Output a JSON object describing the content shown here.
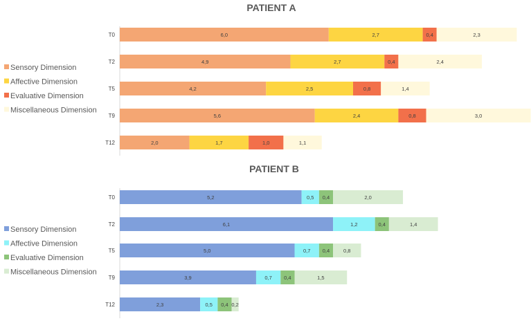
{
  "chart_data": [
    {
      "type": "bar",
      "orientation": "horizontal",
      "stacked": true,
      "title": "PATIENT A",
      "categories": [
        "T0",
        "T2",
        "T5",
        "T9",
        "T12"
      ],
      "series": [
        {
          "name": "Sensory Dimension",
          "color": "#f4a673",
          "values": [
            6.0,
            4.9,
            4.2,
            5.6,
            2.0
          ],
          "labels": [
            "6,0",
            "4,9",
            "4,2",
            "5,6",
            "2,0"
          ]
        },
        {
          "name": "Affective Dimension",
          "color": "#fdd542",
          "values": [
            2.7,
            2.7,
            2.5,
            2.4,
            1.7
          ],
          "labels": [
            "2,7",
            "2,7",
            "2,5",
            "2,4",
            "1,7"
          ]
        },
        {
          "name": "Evaluative Dimension",
          "color": "#f2704a",
          "values": [
            0.4,
            0.4,
            0.8,
            0.8,
            1.0
          ],
          "labels": [
            "0,4",
            "0,4",
            "0,8",
            "0,8",
            "1,0"
          ]
        },
        {
          "name": "Miscellaneous Dimension",
          "color": "#fff8dc",
          "values": [
            2.3,
            2.4,
            1.4,
            3.0,
            1.1
          ],
          "labels": [
            "2,3",
            "2,4",
            "1,4",
            "3,0",
            "1,1"
          ]
        }
      ],
      "legend_position": "left",
      "grid": false
    },
    {
      "type": "bar",
      "orientation": "horizontal",
      "stacked": true,
      "title": "PATIENT B",
      "categories": [
        "T0",
        "T2",
        "T5",
        "T9",
        "T12"
      ],
      "series": [
        {
          "name": "Sensory Dimension",
          "color": "#7f9fdb",
          "values": [
            5.2,
            6.1,
            5.0,
            3.9,
            2.3
          ],
          "labels": [
            "5,2",
            "6,1",
            "5,0",
            "3,9",
            "2,3"
          ]
        },
        {
          "name": "Affective Dimension",
          "color": "#8ef2f8",
          "values": [
            0.5,
            1.2,
            0.7,
            0.7,
            0.5
          ],
          "labels": [
            "0,5",
            "1,2",
            "0,7",
            "0,7",
            "0,5"
          ]
        },
        {
          "name": "Evaluative Dimension",
          "color": "#8dc47a",
          "values": [
            0.4,
            0.4,
            0.4,
            0.4,
            0.4
          ],
          "labels": [
            "0,4",
            "0,4",
            "0,4",
            "0,4",
            "0,4"
          ]
        },
        {
          "name": "Miscellaneous Dimension",
          "color": "#d9ecd2",
          "values": [
            2.0,
            1.4,
            0.8,
            1.5,
            0.2
          ],
          "labels": [
            "2,0",
            "1,4",
            "0,8",
            "1,5",
            "0,2"
          ]
        }
      ],
      "legend_position": "left",
      "grid": false
    }
  ]
}
